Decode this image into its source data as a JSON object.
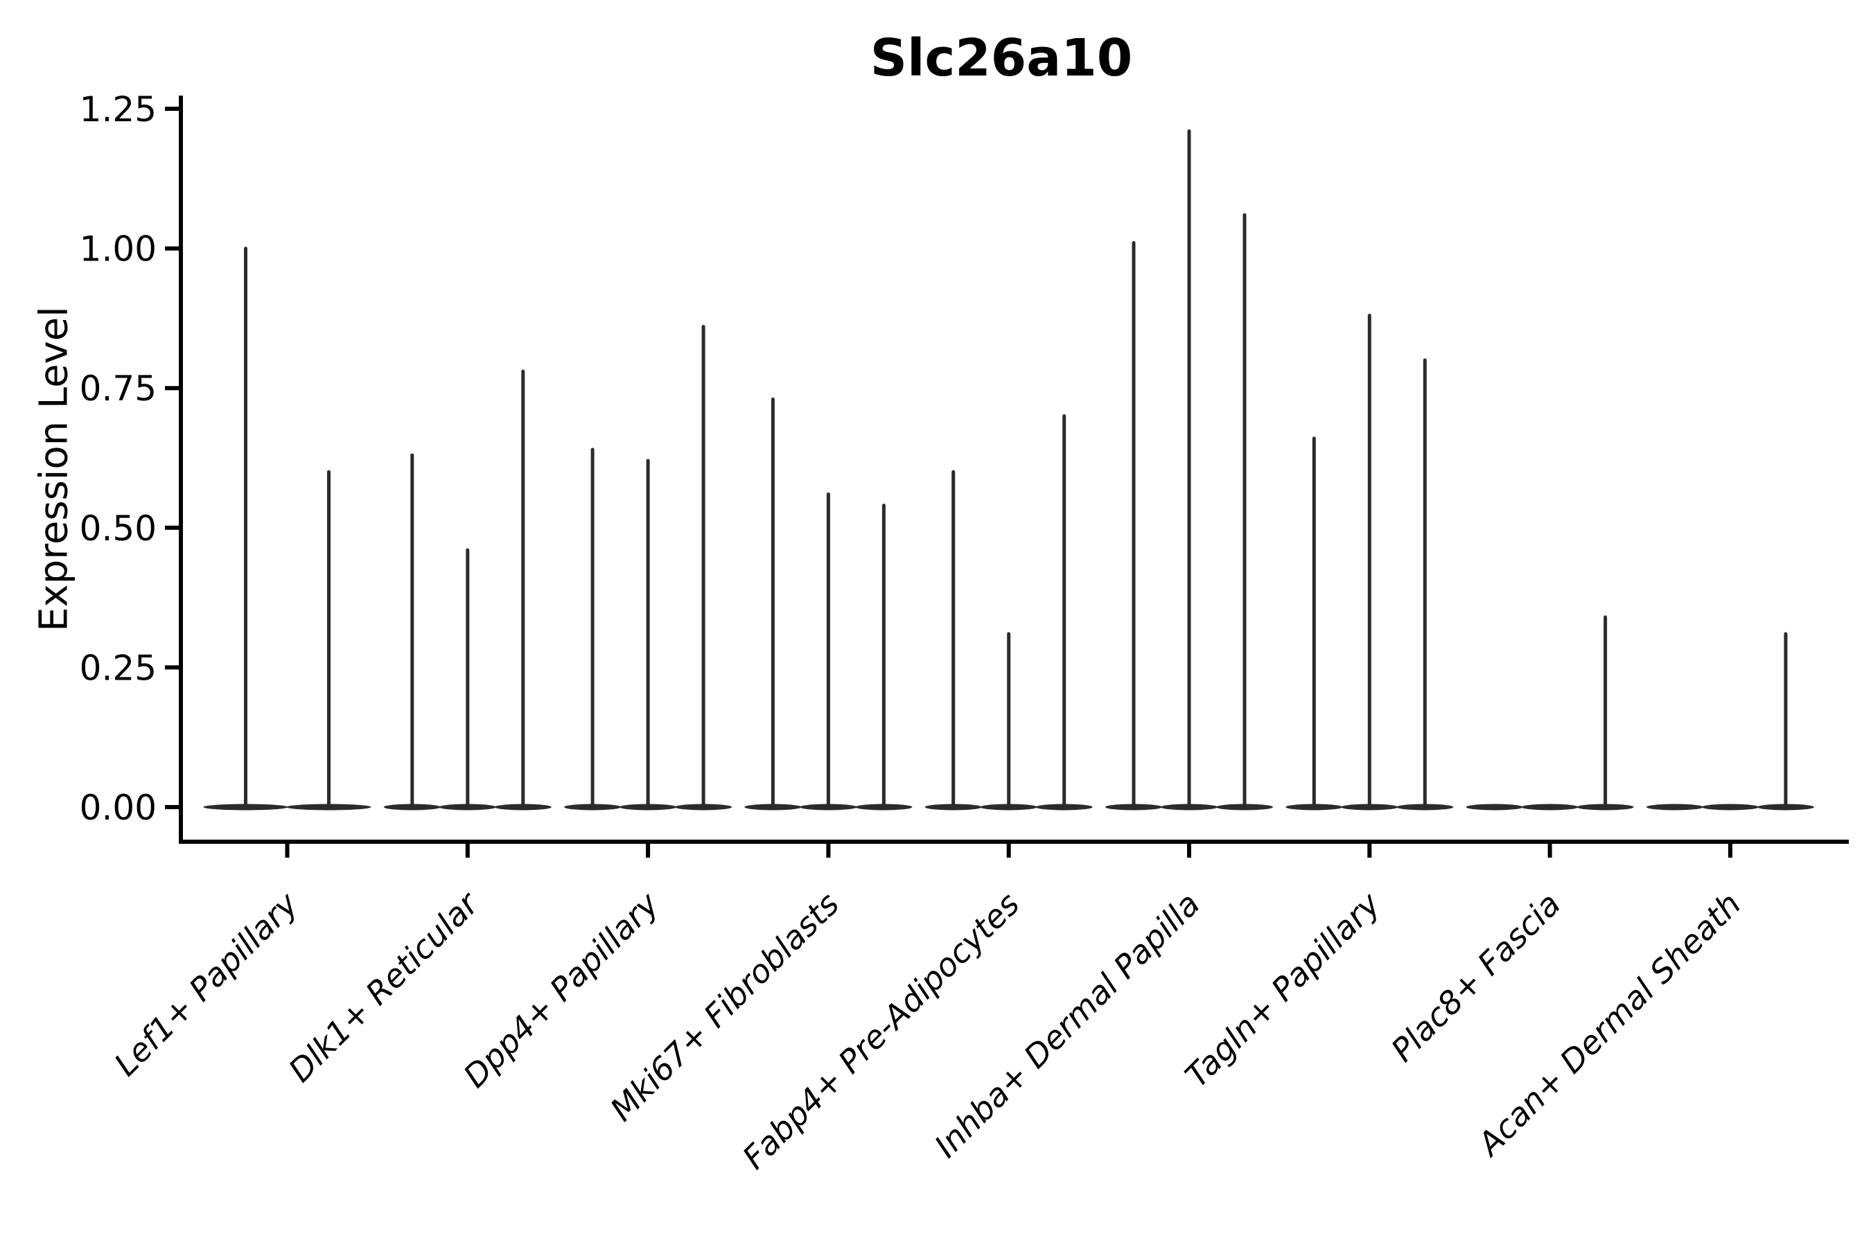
{
  "figure": {
    "background_color": "#ffffff",
    "ink_color": "#000000",
    "violin_color": "#2b2b2b"
  },
  "chart_data": {
    "type": "violin",
    "title": "Slc26a10",
    "xlabel": "",
    "ylabel": "Expression Level",
    "ylim": [
      0,
      1.25
    ],
    "yticks": [
      "0.00",
      "0.25",
      "0.50",
      "0.75",
      "1.00",
      "1.25"
    ],
    "ytick_values": [
      0,
      0.25,
      0.5,
      0.75,
      1.0,
      1.25
    ],
    "grid": false,
    "legend": "none",
    "x_tick_label_style": "italic, rotated 45deg, right-anchored",
    "description": "Stacked-violin style expression plot; each category holds 2-3 narrow violins whose mass sits at 0 with a thin spike rising to the listed maximum expression value. Zero entries are flat zero-variance violins.",
    "categories": [
      "Lef1+ Papillary",
      "Dlk1+ Reticular",
      "Dpp4+ Papillary",
      "Mki67+ Fibroblasts",
      "Fabp4+ Pre-Adipocytes",
      "Inhba+ Dermal Papilla",
      "Tagln+ Papillary",
      "Plac8+ Fascia",
      "Acan+ Dermal Sheath"
    ],
    "groups": [
      {
        "category": "Lef1+ Papillary",
        "violin_maxima": [
          1.0,
          0.6
        ]
      },
      {
        "category": "Dlk1+ Reticular",
        "violin_maxima": [
          0.63,
          0.46,
          0.78
        ]
      },
      {
        "category": "Dpp4+ Papillary",
        "violin_maxima": [
          0.64,
          0.62,
          0.86
        ]
      },
      {
        "category": "Mki67+ Fibroblasts",
        "violin_maxima": [
          0.73,
          0.56,
          0.54
        ]
      },
      {
        "category": "Fabp4+ Pre-Adipocytes",
        "violin_maxima": [
          0.6,
          0.31,
          0.7
        ]
      },
      {
        "category": "Inhba+ Dermal Papilla",
        "violin_maxima": [
          1.01,
          1.21,
          1.06
        ]
      },
      {
        "category": "Tagln+ Papillary",
        "violin_maxima": [
          0.66,
          0.88,
          0.8
        ]
      },
      {
        "category": "Plac8+ Fascia",
        "violin_maxima": [
          0.0,
          0.0,
          0.34
        ]
      },
      {
        "category": "Acan+ Dermal Sheath",
        "violin_maxima": [
          0.0,
          0.0,
          0.31
        ]
      }
    ]
  }
}
